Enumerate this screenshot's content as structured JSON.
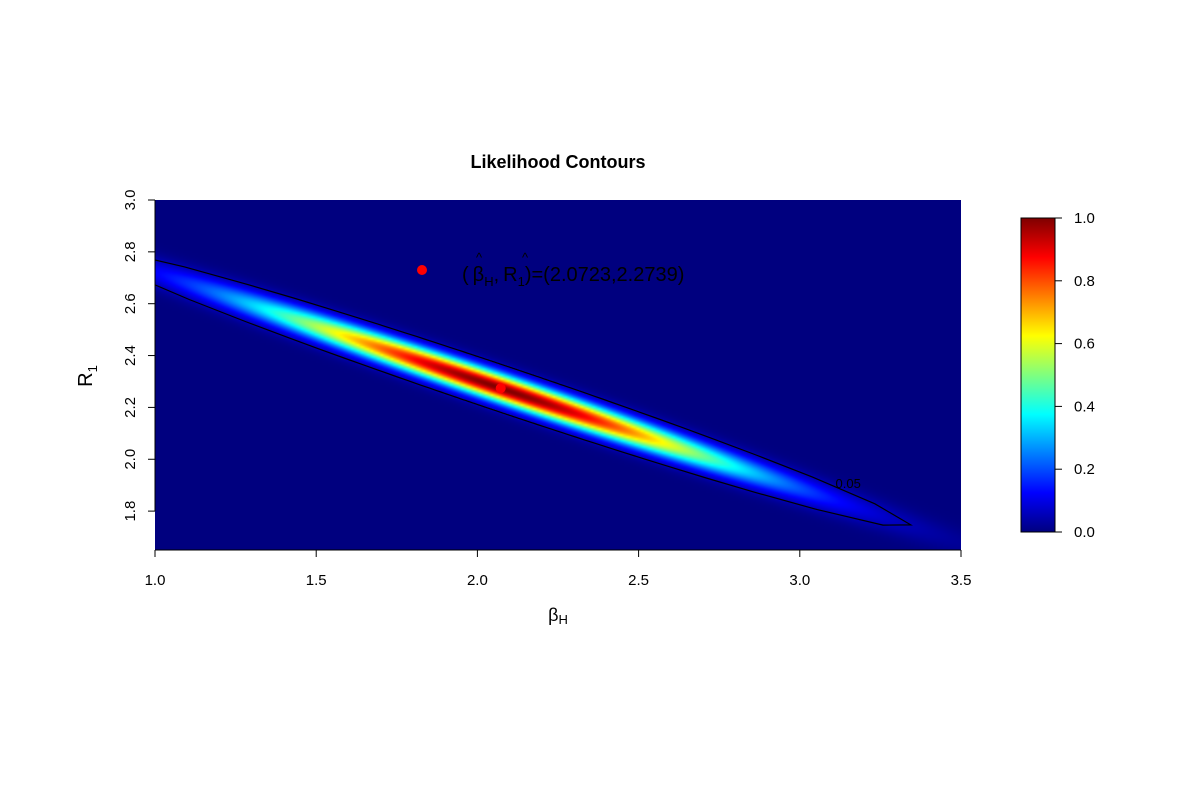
{
  "chart_data": {
    "type": "heatmap",
    "title": "Likelihood Contours",
    "xlabel": "β",
    "xlabel_sub": "H",
    "ylabel": "R",
    "ylabel_sub": "1",
    "xlim": [
      1.0,
      3.5
    ],
    "ylim": [
      1.65,
      3.0
    ],
    "x_ticks": [
      "1.0",
      "1.5",
      "2.0",
      "2.5",
      "3.0",
      "3.5"
    ],
    "y_ticks": [
      "1.8",
      "2.0",
      "2.2",
      "2.4",
      "2.6",
      "2.8",
      "3.0"
    ],
    "x_tick_values": [
      1.0,
      1.5,
      2.0,
      2.5,
      3.0,
      3.5
    ],
    "y_tick_values": [
      1.8,
      2.0,
      2.2,
      2.4,
      2.6,
      2.8,
      3.0
    ],
    "colorbar": {
      "range": [
        0.0,
        1.0
      ],
      "ticks": [
        "0.0",
        "0.2",
        "0.4",
        "0.6",
        "0.8",
        "1.0"
      ],
      "tick_values": [
        0.0,
        0.2,
        0.4,
        0.6,
        0.8,
        1.0
      ],
      "palette": [
        "#00007f",
        "#0000ff",
        "#007fff",
        "#00ffff",
        "#7fff7f",
        "#ffff00",
        "#ff7f00",
        "#ff0000",
        "#7f0000"
      ]
    },
    "mle": {
      "x": 2.0723,
      "y": 2.2739,
      "color": "#ff0000"
    },
    "contour_label": "0.05",
    "contour_level": 0.05,
    "legend": {
      "position": "top-center",
      "marker_color": "#ff0000",
      "text_open": "(",
      "beta": "β",
      "beta_sub": "H",
      "comma": ",",
      "r": "R",
      "r_sub": "1",
      "text_close": ")=(2.0723,2.2739)"
    }
  }
}
